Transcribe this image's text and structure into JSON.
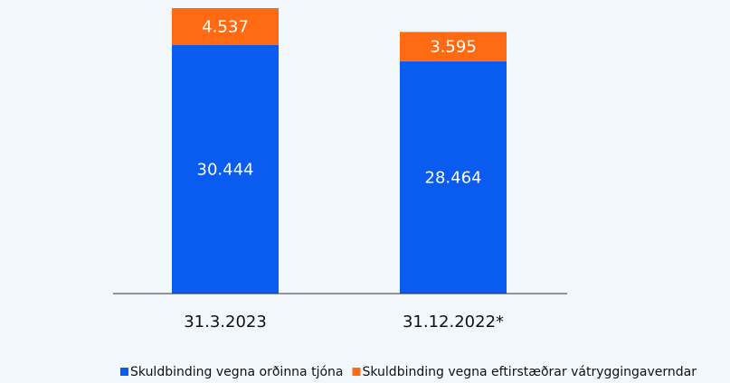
{
  "chart_data": {
    "type": "stacked_bar",
    "categories": [
      "31.3.2023",
      "31.12.2022*"
    ],
    "series": [
      {
        "name": "Skuldbinding vegna orðinna tjóna",
        "color": "#0a5cf0",
        "values": [
          30444,
          28464
        ],
        "value_labels": [
          "30.444",
          "28.464"
        ]
      },
      {
        "name": "Skuldbinding vegna eftirstæðrar vátryggingaverndar",
        "color": "#ff6a13",
        "values": [
          4537,
          3595
        ],
        "value_labels": [
          "4.537",
          "3.595"
        ]
      }
    ],
    "legend": "bottom"
  }
}
